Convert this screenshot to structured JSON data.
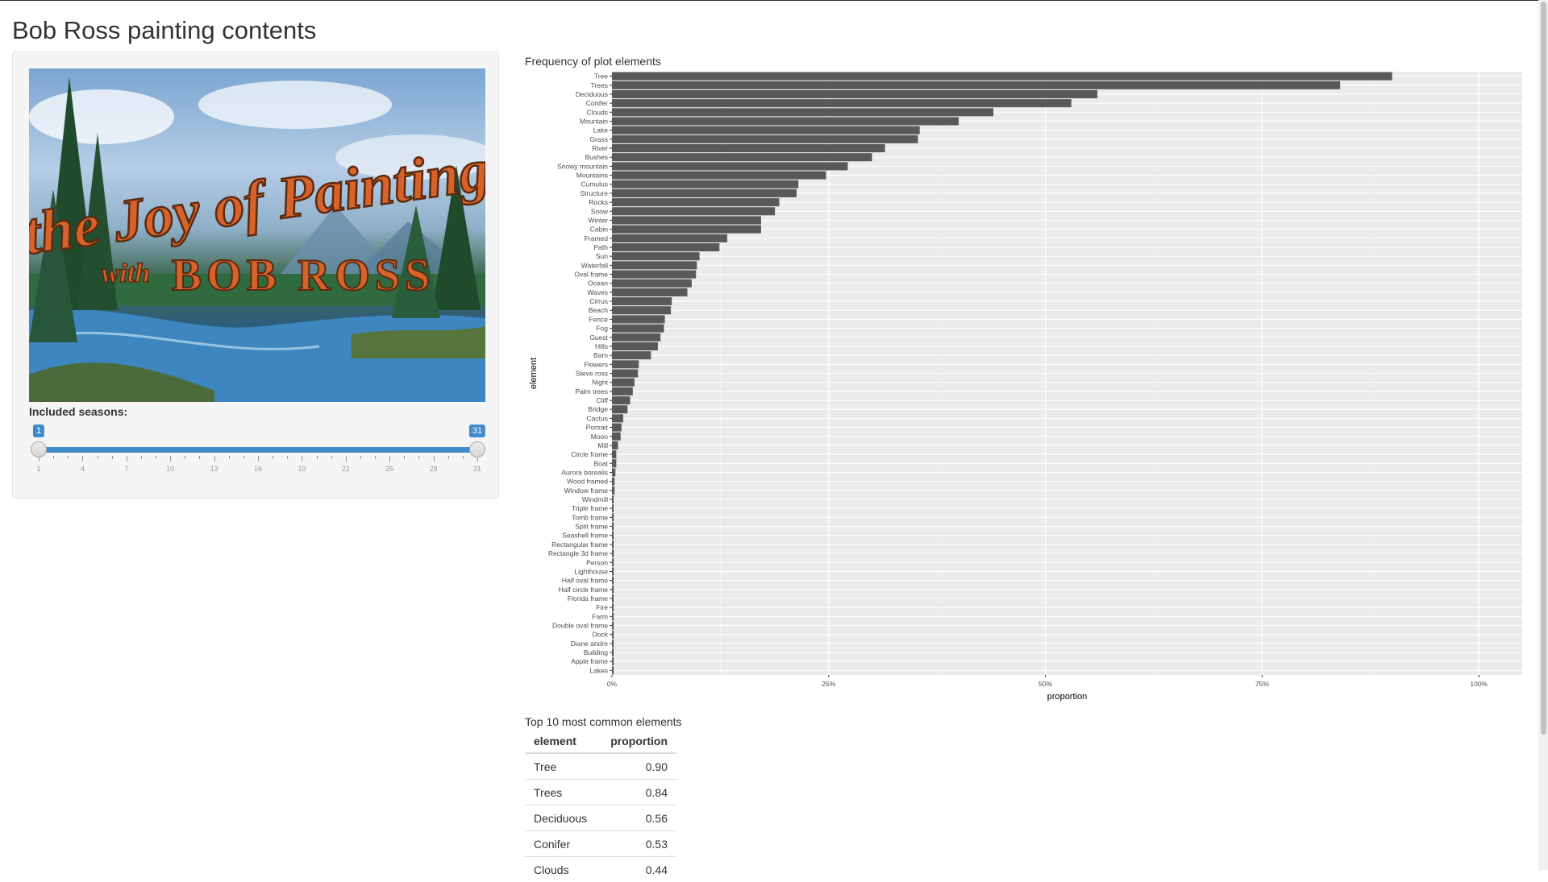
{
  "app": {
    "title": "Bob Ross painting contents"
  },
  "sidebar": {
    "image_caption_lines": [
      "the Joy of Painting",
      "with",
      "BOB ROSS"
    ],
    "slider": {
      "label": "Included seasons:",
      "min": 1,
      "max": 31,
      "value_from": 1,
      "value_to": 31,
      "from_badge": "1",
      "to_badge": "31",
      "tick_labels": [
        "1",
        "4",
        "7",
        "10",
        "13",
        "16",
        "19",
        "22",
        "25",
        "28",
        "31"
      ],
      "accent_color": "#428bca"
    }
  },
  "chart_data": {
    "type": "bar",
    "orientation": "horizontal",
    "title": "Frequency of plot elements",
    "xlabel": "proportion",
    "ylabel": "element",
    "xlim": [
      0,
      1.05
    ],
    "x_tick_labels": [
      "0%",
      "25%",
      "50%",
      "75%",
      "100%"
    ],
    "x_tick_values": [
      0,
      0.25,
      0.5,
      0.75,
      1.0
    ],
    "grid": true,
    "legend": "none",
    "bar_color": "#595959",
    "panel_color": "#ebebeb",
    "categories": [
      "Tree",
      "Trees",
      "Deciduous",
      "Conifer",
      "Clouds",
      "Mountain",
      "Lake",
      "Grass",
      "River",
      "Bushes",
      "Snowy mountain",
      "Mountains",
      "Cumulus",
      "Structure",
      "Rocks",
      "Snow",
      "Winter",
      "Cabin",
      "Framed",
      "Path",
      "Sun",
      "Waterfall",
      "Oval frame",
      "Ocean",
      "Waves",
      "Cirrus",
      "Beach",
      "Fence",
      "Fog",
      "Guest",
      "Hills",
      "Barn",
      "Flowers",
      "Steve ross",
      "Night",
      "Palm trees",
      "Cliff",
      "Bridge",
      "Cactus",
      "Portrait",
      "Moon",
      "Mill",
      "Circle frame",
      "Boat",
      "Aurora borealis",
      "Wood framed",
      "Window frame",
      "Windmill",
      "Triple frame",
      "Tomb frame",
      "Split frame",
      "Seashell frame",
      "Rectangular frame",
      "Rectangle 3d frame",
      "Person",
      "Lighthouse",
      "Half oval frame",
      "Half circle frame",
      "Florida frame",
      "Fire",
      "Farm",
      "Double oval frame",
      "Dock",
      "Diane andre",
      "Building",
      "Apple frame",
      "Lakes"
    ],
    "values": [
      0.9,
      0.84,
      0.56,
      0.53,
      0.44,
      0.4,
      0.355,
      0.353,
      0.315,
      0.3,
      0.272,
      0.247,
      0.215,
      0.213,
      0.193,
      0.188,
      0.172,
      0.172,
      0.133,
      0.124,
      0.101,
      0.098,
      0.097,
      0.092,
      0.087,
      0.069,
      0.068,
      0.061,
      0.06,
      0.056,
      0.053,
      0.045,
      0.031,
      0.03,
      0.026,
      0.024,
      0.021,
      0.018,
      0.013,
      0.011,
      0.01,
      0.007,
      0.005,
      0.005,
      0.004,
      0.003,
      0.003,
      0.002,
      0.002,
      0.002,
      0.002,
      0.002,
      0.002,
      0.002,
      0.002,
      0.002,
      0.002,
      0.002,
      0.002,
      0.002,
      0.002,
      0.002,
      0.002,
      0.002,
      0.002,
      0.002,
      0.002
    ]
  },
  "table": {
    "title": "Top 10 most common elements",
    "columns": [
      "element",
      "proportion"
    ],
    "rows": [
      [
        "Tree",
        "0.90"
      ],
      [
        "Trees",
        "0.84"
      ],
      [
        "Deciduous",
        "0.56"
      ],
      [
        "Conifer",
        "0.53"
      ],
      [
        "Clouds",
        "0.44"
      ]
    ]
  }
}
